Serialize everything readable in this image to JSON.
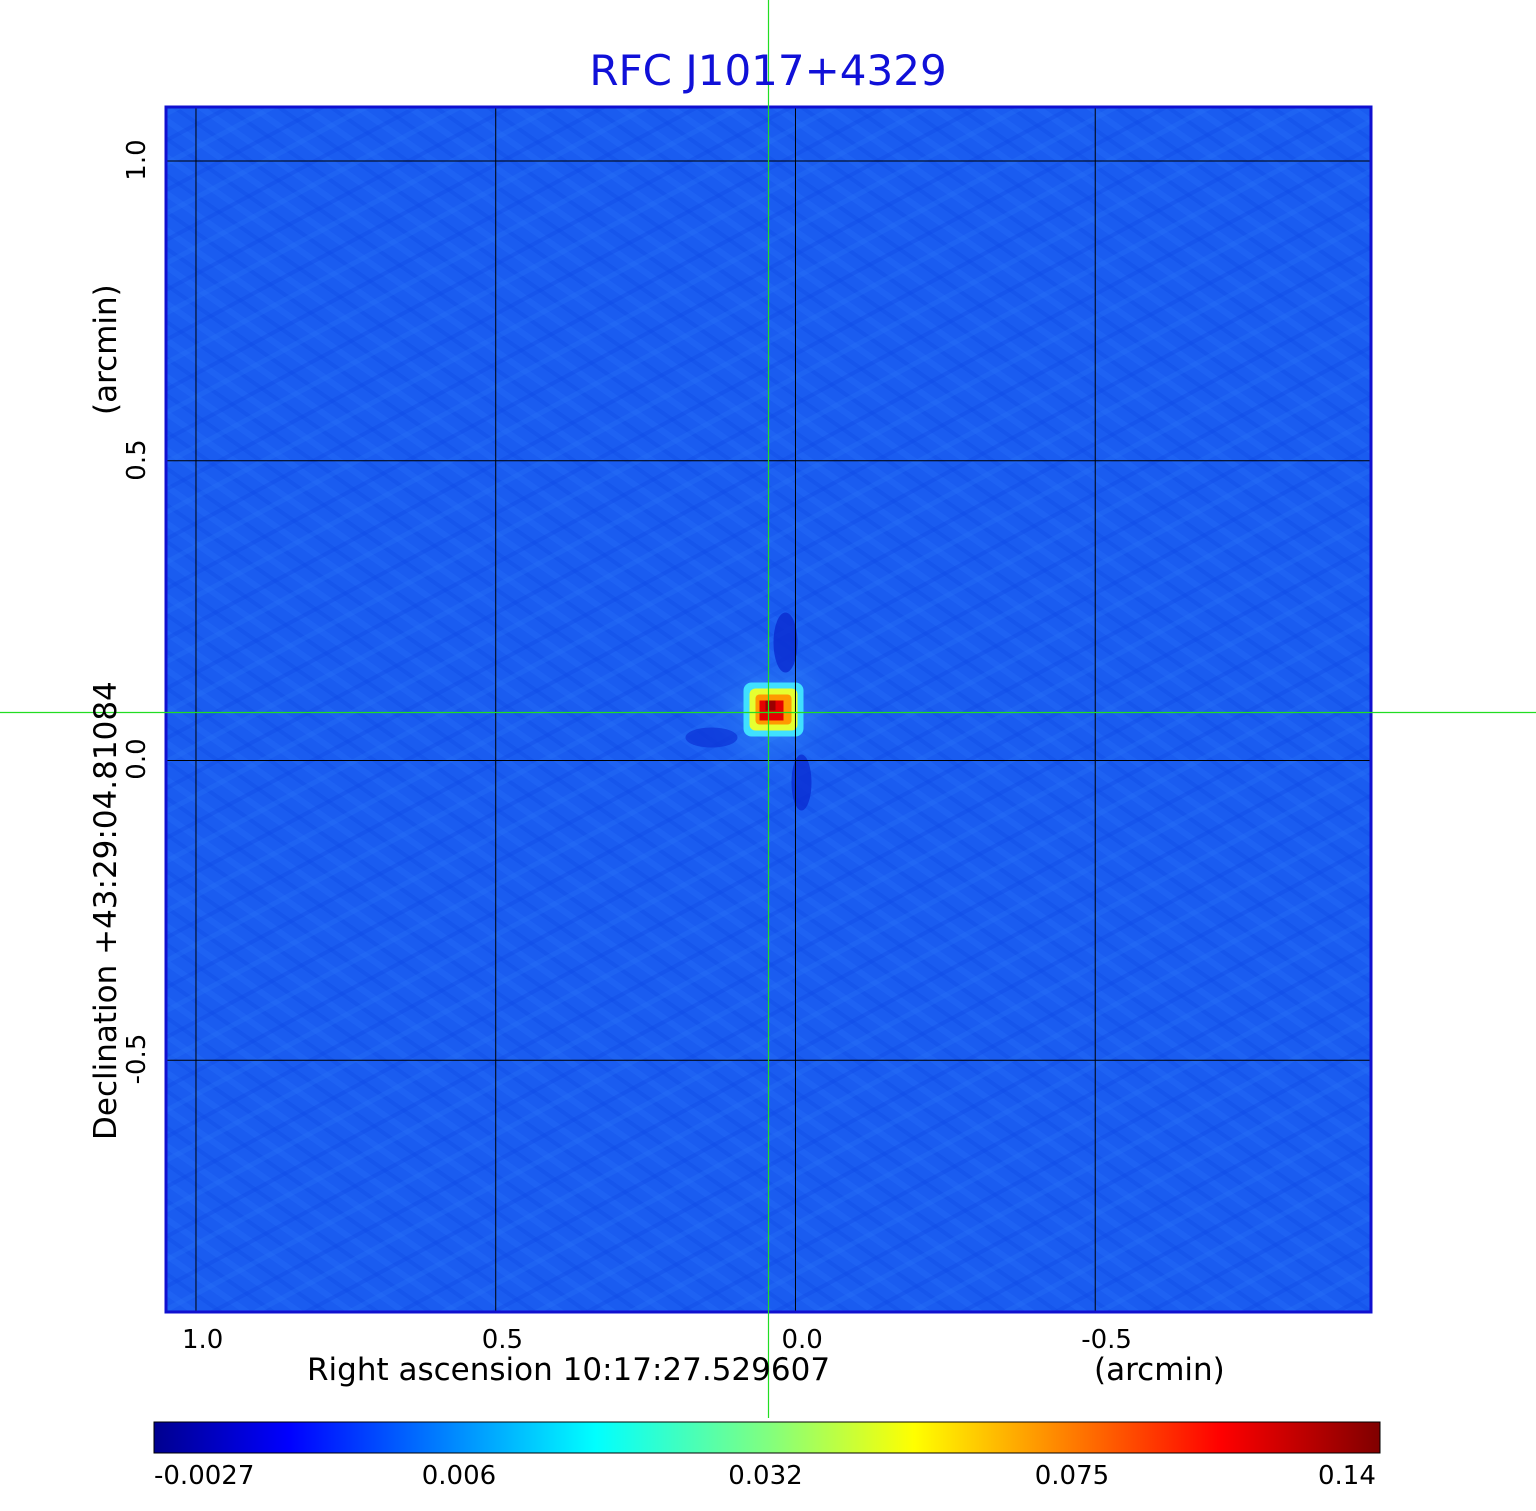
{
  "chart_data": {
    "type": "heatmap",
    "title": "RFC J1017+4329",
    "xlabel": "Right ascension  10:17:27.529607",
    "xunit": "(arcmin)",
    "ylabel": "Declination  +43:29:04.81084",
    "yunit": "(arcmin)",
    "xlim": [
      1.05,
      -0.96
    ],
    "ylim": [
      -0.92,
      1.09
    ],
    "x_ticks": [
      "1.0",
      "0.5",
      "0.0",
      "-0.5"
    ],
    "x_tick_values": [
      1.0,
      0.5,
      0.0,
      -0.5
    ],
    "y_ticks": [
      "1.0",
      "0.5",
      "0.0",
      "-0.5"
    ],
    "y_tick_values": [
      1.0,
      0.5,
      0.0,
      -0.5
    ],
    "grid": true,
    "source": {
      "x": 0.04,
      "y": 0.08,
      "peak": 0.14
    },
    "crosshair": {
      "x": 0.045,
      "y": 0.08,
      "color": "#22dd22"
    },
    "colorbar": {
      "ticks": [
        "-0.0027",
        "0.006",
        "0.032",
        "0.075",
        "0.14"
      ],
      "colormap": "jet"
    },
    "colors": {
      "background": "#1a5cf0",
      "title": "#1010d8",
      "frame": "#1010d0"
    }
  }
}
